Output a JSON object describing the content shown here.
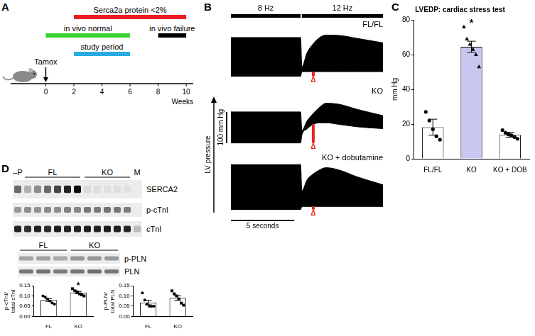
{
  "chart_data": [
    {
      "panel": "B",
      "type": "line",
      "axis_label": "LV pressure",
      "color": "#000000",
      "xlim": [
        0,
        12
      ],
      "ylim": [
        -10,
        150
      ],
      "tick_labels": false,
      "grid": false,
      "phases": [
        {
          "label": "8 Hz",
          "start": 0,
          "end": 5.5
        },
        {
          "label": "12 Hz",
          "start": 5.6,
          "end": 12
        }
      ],
      "scale_bars": {
        "y": {
          "value": 100,
          "label": "100 mm Hg"
        },
        "x": {
          "value": 5,
          "label": "5 seconds"
        }
      },
      "delta_label": "Δ",
      "delta_color": "#e8251f",
      "traces": [
        {
          "label": "FL/FL",
          "x": [
            0,
            5.5,
            5.6,
            6,
            6.5,
            7,
            7.5,
            8.5,
            10,
            12
          ],
          "upper": [
            125,
            125,
            30,
            75,
            105,
            125,
            133,
            132,
            122,
            108
          ],
          "lower": [
            0,
            0,
            15,
            15,
            15,
            15,
            15,
            15,
            15,
            15
          ],
          "delta": {
            "x": 6.5,
            "value": 15
          }
        },
        {
          "label": "KO",
          "x": [
            0,
            5.5,
            5.6,
            6,
            6.5,
            7,
            7.5,
            8.5,
            10,
            12
          ],
          "upper": [
            100,
            100,
            40,
            70,
            95,
            115,
            128,
            125,
            108,
            88
          ],
          "lower": [
            0,
            0,
            25,
            45,
            60,
            65,
            65,
            60,
            52,
            46
          ],
          "delta": {
            "x": 6.5,
            "value": 60
          }
        },
        {
          "label": "KO + dobutamine",
          "x": [
            0,
            5.5,
            5.6,
            6,
            6.5,
            7,
            7.5,
            8.5,
            10,
            12
          ],
          "upper": [
            145,
            145,
            60,
            95,
            115,
            128,
            135,
            128,
            105,
            80
          ],
          "lower": [
            0,
            0,
            10,
            10,
            10,
            10,
            10,
            10,
            10,
            10
          ],
          "delta": {
            "x": 6.5,
            "value": 10
          }
        }
      ]
    },
    {
      "panel": "C",
      "type": "bar",
      "title": "LVEDP: cardiac stress test",
      "y_label": "mm Hg",
      "categories": [
        "FL/FL",
        "KO",
        "KO + DOB"
      ],
      "values": [
        18.2,
        64.5,
        13.8
      ],
      "errors": [
        4.6,
        3.2,
        1.4
      ],
      "colors": [
        "#ffffff",
        "#c9c6f2",
        "#ffffff"
      ],
      "points": [
        {
          "marker": "circle",
          "values": [
            27,
            22,
            17,
            13,
            11
          ]
        },
        {
          "marker": "triangle",
          "values": [
            76,
            69,
            66,
            63,
            60,
            53
          ]
        },
        {
          "marker": "circle",
          "values": [
            16.5,
            15,
            14,
            13.5,
            12.5,
            11.5
          ]
        }
      ],
      "annotations": [
        {
          "category": "KO",
          "text": "*"
        }
      ],
      "ylim": [
        0,
        80
      ],
      "yticks": [
        0,
        20,
        40,
        60,
        80
      ],
      "grid": false
    },
    {
      "type": "bar",
      "y_label": "p-cTnI/total cTnI",
      "categories": [
        "FL",
        "KO"
      ],
      "values": [
        0.08,
        0.116
      ],
      "errors": [
        0.0065,
        0.0055
      ],
      "colors": [
        "#ffffff",
        "#ffffff"
      ],
      "points": [
        {
          "marker": "circle",
          "values": [
            0.1,
            0.095,
            0.085,
            0.075,
            0.065,
            0.06
          ]
        },
        {
          "marker": "square",
          "values": [
            0.135,
            0.125,
            0.12,
            0.11,
            0.105,
            0.1
          ]
        }
      ],
      "annotations": [
        {
          "category": "KO",
          "text": "*"
        }
      ],
      "ylim": [
        0,
        0.15
      ],
      "yticks": [
        {
          "value": 0,
          "label": "0.00"
        },
        {
          "value": 0.05,
          "label": "0.05"
        },
        {
          "value": 0.1,
          "label": "0.10"
        },
        {
          "value": 0.15,
          "label": "0.15"
        }
      ],
      "grid": false
    },
    {
      "type": "bar",
      "y_label": "p-PLN/total PLN",
      "categories": [
        "FL",
        "KO"
      ],
      "values": [
        0.068,
        0.09
      ],
      "errors": [
        0.011,
        0.011
      ],
      "colors": [
        "#ffffff",
        "#ffffff"
      ],
      "points": [
        {
          "marker": "circle",
          "values": [
            0.115,
            0.08,
            0.06,
            0.05,
            0.05,
            0.05
          ]
        },
        {
          "marker": "square",
          "values": [
            0.125,
            0.11,
            0.1,
            0.085,
            0.065,
            0.055
          ]
        }
      ],
      "ylim": [
        0,
        0.15
      ],
      "yticks": [
        {
          "value": 0,
          "label": "0.00"
        },
        {
          "value": 0.05,
          "label": "0.05"
        },
        {
          "value": 0.1,
          "label": "0.10"
        },
        {
          "value": 0.15,
          "label": "0.15"
        }
      ],
      "grid": false
    }
  ],
  "diagram": {
    "timeline": {
      "letter": "A",
      "xlim": [
        -2.5,
        10.5
      ],
      "xticks": [
        0,
        2,
        4,
        6,
        8,
        10
      ],
      "x_label": "Weeks",
      "arrow": {
        "at": 0,
        "label": "Tamox"
      },
      "bars": [
        {
          "label": "Serca2a protein <2%",
          "start": 2,
          "end": 10,
          "color": "#ed1c24"
        },
        {
          "label": "in vivo normal",
          "start": 0,
          "end": 6,
          "color": "#39d12f"
        },
        {
          "label": "in vivo failure",
          "start": 8,
          "end": 10,
          "color": "#000000"
        },
        {
          "label": "study period",
          "start": 2,
          "end": 6,
          "color": "#29abe2"
        }
      ]
    },
    "blots": {
      "letter": "D",
      "groups": [
        {
          "header": [
            "–P",
            "FL",
            "KO",
            "M"
          ],
          "rows": [
            "SERCA2",
            "p-cTnI",
            "cTnI"
          ]
        },
        {
          "header": [
            "FL",
            "KO"
          ],
          "rows": [
            "p-PLN",
            "PLN"
          ]
        }
      ]
    }
  }
}
